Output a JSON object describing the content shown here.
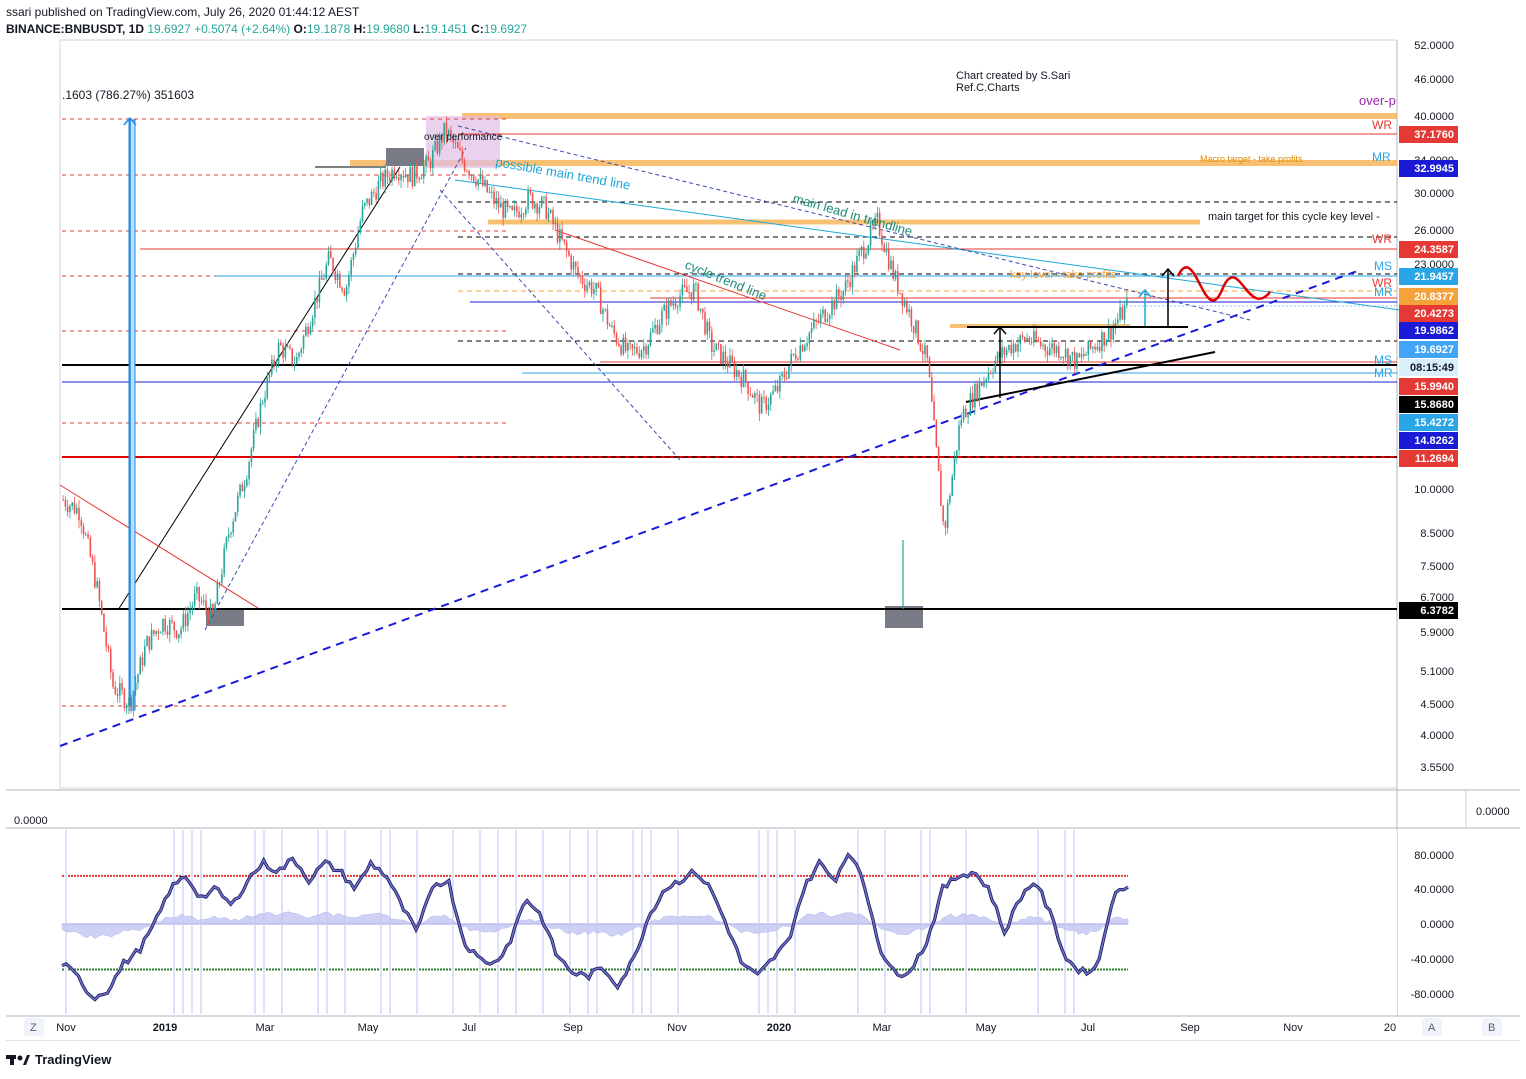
{
  "header": {
    "line1": "ssari published on TradingView.com, July 26, 2020 01:44:12 AEST",
    "symbol": "BINANCE:BNBUSDT, 1D",
    "last": "19.6927",
    "change": "+0.5074 (+2.64%)",
    "o_label": "O:",
    "o": "19.1878",
    "h_label": "H:",
    "h": "19.9680",
    "l_label": "L:",
    "l": "19.1451",
    "c_label": "C:",
    "c": "19.6927"
  },
  "footer": {
    "brand": "TradingView"
  },
  "buttons": {
    "zoom": "Z",
    "auto": "A",
    "log": "B"
  },
  "annotations": {
    "credit1": "Chart created by S.Sari",
    "credit2": "Ref.C.Charts",
    "measure": ".1603 (786.27%) 351603",
    "over_performance": "over performance",
    "possible_trend": "possible main trend line",
    "main_lead": "main lead in trendline",
    "cycle_trend": "cycle trend line",
    "macro_target": "Macro target - take profits",
    "main_target": "main target for this cycle key level -",
    "key_level": "key level - take profits",
    "over_p": "over-p",
    "wr1": "WR",
    "mr1": "MR",
    "wr2": "WR",
    "ms1": "MS",
    "wr3": "WR",
    "mr2": "MR",
    "ms2": "MS",
    "mr3": "MR"
  },
  "indicator": {
    "value_left": "0.0000",
    "value_right": "0.0000"
  },
  "colors": {
    "up": "#26a69a",
    "down": "#ef5350",
    "orange_zone": "#f7b55b",
    "trend_blue": "#1a1adb",
    "osc_line": "#3f3fa5",
    "osc_fill": "#c3c6f2",
    "red_level": "#e00000",
    "teal_text": "#1f8a7a"
  },
  "chart_data": [
    {
      "type": "candlestick",
      "title": "",
      "symbol": "BINANCE:BNBUSDT",
      "interval": "1D",
      "y_scale": "log",
      "ylim": [
        3.4,
        52
      ],
      "x_tick_labels": [
        "Nov",
        "2019",
        "Mar",
        "May",
        "Jul",
        "Sep",
        "Nov",
        "2020",
        "Mar",
        "May",
        "Jul",
        "Sep",
        "Nov",
        "20"
      ],
      "y_tick_labels": [
        "52.0000",
        "46.0000",
        "40.0000",
        "34.0000",
        "30.0000",
        "26.0000",
        "23.0000",
        "10.0000",
        "8.5000",
        "7.5000",
        "6.7000",
        "5.9000",
        "5.1000",
        "4.5000",
        "4.0000",
        "3.5500"
      ],
      "price_labels": [
        {
          "value": "37.1760",
          "bg": "#e53935",
          "fg": "#ffffff"
        },
        {
          "value": "32.9945",
          "bg": "#1b1bd6",
          "fg": "#ffffff"
        },
        {
          "value": "24.3587",
          "bg": "#e53935",
          "fg": "#ffffff"
        },
        {
          "value": "21.9457",
          "bg": "#2aa5e8",
          "fg": "#ffffff"
        },
        {
          "value": "20.8377",
          "bg": "#f5a23a",
          "fg": "#ffffff"
        },
        {
          "value": "20.4273",
          "bg": "#e53935",
          "fg": "#ffffff"
        },
        {
          "value": "19.9862",
          "bg": "#1b1bd6",
          "fg": "#ffffff"
        },
        {
          "value": "19.6927",
          "bg": "#42a5f5",
          "fg": "#ffffff"
        },
        {
          "value": "08:15:49",
          "bg": "#dbeefc",
          "fg": "#131722"
        },
        {
          "value": "15.9940",
          "bg": "#e53935",
          "fg": "#ffffff"
        },
        {
          "value": "15.8680",
          "bg": "#000000",
          "fg": "#ffffff"
        },
        {
          "value": "15.4272",
          "bg": "#2aa5e8",
          "fg": "#ffffff"
        },
        {
          "value": "14.8262",
          "bg": "#1b1bd6",
          "fg": "#ffffff"
        },
        {
          "value": "11.2694",
          "bg": "#e53935",
          "fg": "#ffffff"
        },
        {
          "value": "6.3782",
          "bg": "#000000",
          "fg": "#ffffff"
        }
      ],
      "closes_approx": [
        9.6,
        9.2,
        7.0,
        4.8,
        4.5,
        5.6,
        6.1,
        5.9,
        6.7,
        6.2,
        8.6,
        10.6,
        14.0,
        17.0,
        16.0,
        19.5,
        23.5,
        21.0,
        28.0,
        31.0,
        33.0,
        32.0,
        33.5,
        38.0,
        34.0,
        31.5,
        29.0,
        27.5,
        29.5,
        28.5,
        25.0,
        22.0,
        21.0,
        18.0,
        16.5,
        17.0,
        19.0,
        20.5,
        21.0,
        17.0,
        16.0,
        15.0,
        13.5,
        14.5,
        16.5,
        18.0,
        19.5,
        21.0,
        24.0,
        27.0,
        22.0,
        19.0,
        16.0,
        8.5,
        13.0,
        14.5,
        16.0,
        17.0,
        17.5,
        17.0,
        16.8,
        16.0,
        17.0,
        18.0,
        19.6927
      ]
    },
    {
      "type": "line",
      "title": "",
      "ylim": [
        -100,
        100
      ],
      "y_tick_labels": [
        "80.0000",
        "40.0000",
        "0.0000",
        "-40.0000",
        "-80.0000"
      ],
      "levels": [
        55,
        -52
      ],
      "values_approx": [
        -45,
        -60,
        -85,
        -75,
        -45,
        -30,
        0,
        40,
        55,
        30,
        40,
        20,
        50,
        70,
        60,
        75,
        50,
        70,
        60,
        40,
        70,
        55,
        20,
        -10,
        45,
        50,
        -20,
        -40,
        -45,
        -20,
        30,
        10,
        -35,
        -55,
        -60,
        -50,
        -70,
        -40,
        10,
        40,
        50,
        60,
        40,
        0,
        -45,
        -60,
        -40,
        -20,
        40,
        70,
        50,
        85,
        40,
        -30,
        -60,
        -50,
        -20,
        40,
        55,
        60,
        40,
        -10,
        30,
        50,
        10,
        -40,
        -55,
        -50,
        30,
        45
      ]
    }
  ]
}
